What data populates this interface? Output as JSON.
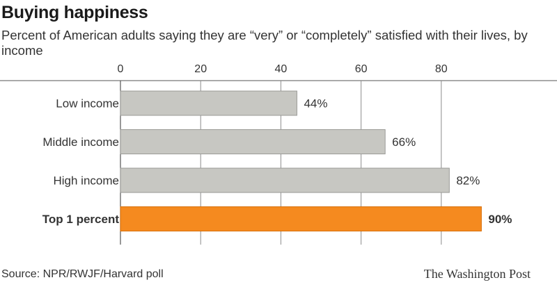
{
  "header": {
    "title": "Buying happiness",
    "subtitle": "Percent of American adults saying they are “very” or “completely” satisfied with their lives, by income"
  },
  "footer": {
    "source": "Source: NPR/RWJF/Harvard poll",
    "brand": "The Washington Post"
  },
  "chart_data": {
    "type": "bar",
    "orientation": "horizontal",
    "categories": [
      "Low income",
      "Middle income",
      "High income",
      "Top 1 percent"
    ],
    "values": [
      44,
      66,
      82,
      90
    ],
    "value_labels": [
      "44%",
      "66%",
      "82%",
      "90%"
    ],
    "highlight": [
      false,
      false,
      false,
      true
    ],
    "x_ticks": [
      0,
      20,
      40,
      60,
      80
    ],
    "x_tick_labels": [
      "0",
      "20",
      "40",
      "60",
      "80"
    ],
    "xlim": [
      0,
      90
    ],
    "axis_position": "top",
    "grid": true,
    "colors": {
      "bar": "#c7c7c2",
      "bar_stroke": "#9a9a96",
      "highlight": "#f58a1f",
      "highlight_stroke": "#d86f0a",
      "grid": "#8c8c8c"
    }
  }
}
